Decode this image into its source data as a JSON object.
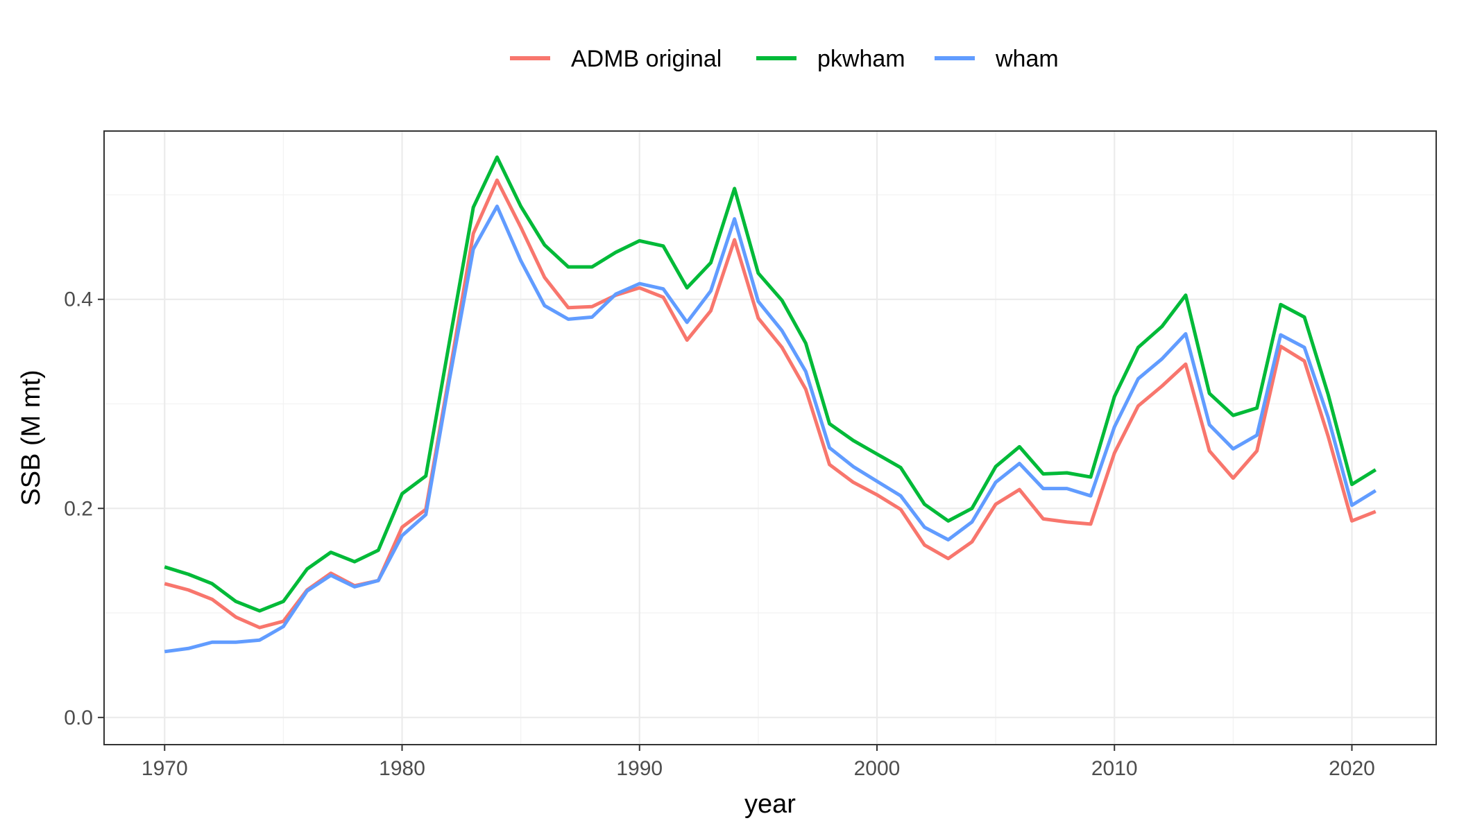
{
  "chart_data": {
    "type": "line",
    "xlabel": "year",
    "ylabel": "SSB (M mt)",
    "xlim": [
      1967.45,
      1973.55
    ],
    "ylim": [
      -0.026,
      0.561
    ],
    "x_ticks": [
      1970,
      1980,
      1990,
      2000,
      2010,
      2020
    ],
    "y_ticks": [
      0.0,
      0.2,
      0.4
    ],
    "x_tick_labels": [
      "1970",
      "1980",
      "1990",
      "2000",
      "2010",
      "2020"
    ],
    "y_tick_labels": [
      "0.0",
      "0.2",
      "0.4"
    ],
    "grid": true,
    "legend_position": "top",
    "x": [
      1970,
      1971,
      1972,
      1973,
      1974,
      1975,
      1976,
      1977,
      1978,
      1979,
      1980,
      1981,
      1982,
      1983,
      1984,
      1985,
      1986,
      1987,
      1988,
      1989,
      1990,
      1991,
      1992,
      1993,
      1994,
      1995,
      1996,
      1997,
      1998,
      1999,
      2000,
      2001,
      2002,
      2003,
      2004,
      2005,
      2006,
      2007,
      2008,
      2009,
      2010,
      2011,
      2012,
      2013,
      2014,
      2015,
      2016,
      2017,
      2018,
      2019,
      2020,
      2021
    ],
    "series": [
      {
        "name": "ADMB original",
        "color": "#F8766D",
        "values": [
          0.128,
          0.122,
          0.113,
          0.096,
          0.086,
          0.092,
          0.122,
          0.138,
          0.126,
          0.131,
          0.182,
          0.199,
          0.329,
          0.463,
          0.514,
          0.469,
          0.421,
          0.392,
          0.393,
          0.404,
          0.411,
          0.402,
          0.361,
          0.389,
          0.457,
          0.382,
          0.354,
          0.314,
          0.242,
          0.225,
          0.213,
          0.199,
          0.165,
          0.152,
          0.168,
          0.204,
          0.218,
          0.19,
          0.187,
          0.185,
          0.253,
          0.298,
          0.317,
          0.338,
          0.255,
          0.229,
          0.255,
          0.355,
          0.341,
          0.269,
          0.188,
          0.197
        ]
      },
      {
        "name": "pkwham",
        "color": "#00BA38",
        "values": [
          0.144,
          0.137,
          0.128,
          0.111,
          0.102,
          0.111,
          0.142,
          0.158,
          0.149,
          0.16,
          0.214,
          0.231,
          0.36,
          0.488,
          0.536,
          0.489,
          0.452,
          0.431,
          0.431,
          0.445,
          0.456,
          0.451,
          0.411,
          0.435,
          0.506,
          0.425,
          0.399,
          0.358,
          0.281,
          0.265,
          0.252,
          0.239,
          0.204,
          0.188,
          0.2,
          0.24,
          0.259,
          0.233,
          0.234,
          0.23,
          0.307,
          0.354,
          0.374,
          0.404,
          0.31,
          0.289,
          0.296,
          0.395,
          0.383,
          0.309,
          0.223,
          0.237
        ]
      },
      {
        "name": "wham",
        "color": "#619CFF",
        "values": [
          0.063,
          0.066,
          0.072,
          0.072,
          0.074,
          0.087,
          0.121,
          0.136,
          0.125,
          0.131,
          0.174,
          0.194,
          0.324,
          0.448,
          0.489,
          0.437,
          0.394,
          0.381,
          0.383,
          0.405,
          0.415,
          0.41,
          0.378,
          0.408,
          0.477,
          0.398,
          0.37,
          0.331,
          0.258,
          0.24,
          0.226,
          0.212,
          0.182,
          0.17,
          0.187,
          0.225,
          0.243,
          0.219,
          0.219,
          0.212,
          0.278,
          0.324,
          0.343,
          0.367,
          0.28,
          0.257,
          0.27,
          0.366,
          0.354,
          0.287,
          0.203,
          0.217
        ]
      }
    ]
  }
}
